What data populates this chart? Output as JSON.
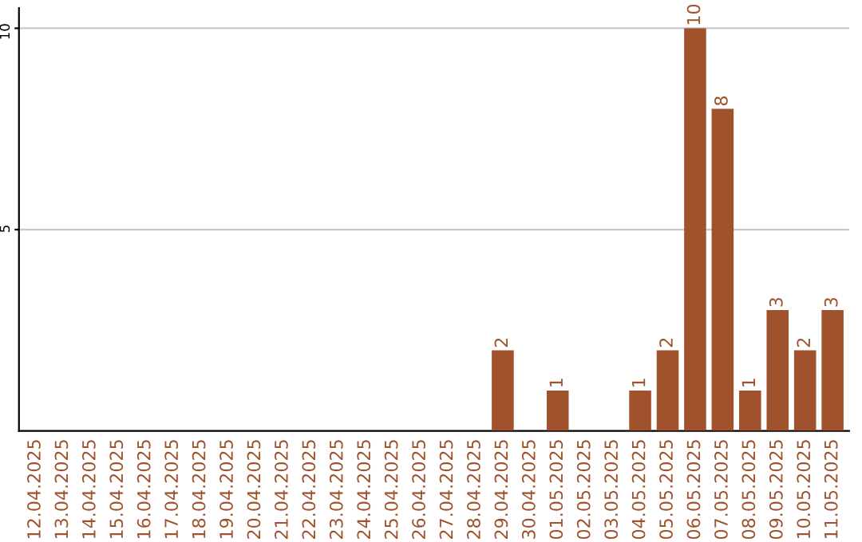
{
  "chart_data": {
    "type": "bar",
    "categories": [
      "12.04.2025",
      "13.04.2025",
      "14.04.2025",
      "15.04.2025",
      "16.04.2025",
      "17.04.2025",
      "18.04.2025",
      "19.04.2025",
      "20.04.2025",
      "21.04.2025",
      "22.04.2025",
      "23.04.2025",
      "24.04.2025",
      "25.04.2025",
      "26.04.2025",
      "27.04.2025",
      "28.04.2025",
      "29.04.2025",
      "30.04.2025",
      "01.05.2025",
      "02.05.2025",
      "03.05.2025",
      "04.05.2025",
      "05.05.2025",
      "06.05.2025",
      "07.05.2025",
      "08.05.2025",
      "09.05.2025",
      "10.05.2025",
      "11.05.2025"
    ],
    "values": [
      0,
      0,
      0,
      0,
      0,
      0,
      0,
      0,
      0,
      0,
      0,
      0,
      0,
      0,
      0,
      0,
      0,
      2,
      0,
      1,
      0,
      0,
      1,
      2,
      10,
      8,
      1,
      3,
      2,
      3
    ],
    "value_labels": [
      null,
      null,
      null,
      null,
      null,
      null,
      null,
      null,
      null,
      null,
      null,
      null,
      null,
      null,
      null,
      null,
      null,
      "2",
      null,
      "1",
      null,
      null,
      "1",
      "2",
      "10",
      "8",
      "1",
      "3",
      "2",
      "3"
    ],
    "color": "#a0522d",
    "ylim": [
      0,
      10.5
    ],
    "yticks": [
      5,
      10
    ],
    "grid": "y"
  }
}
